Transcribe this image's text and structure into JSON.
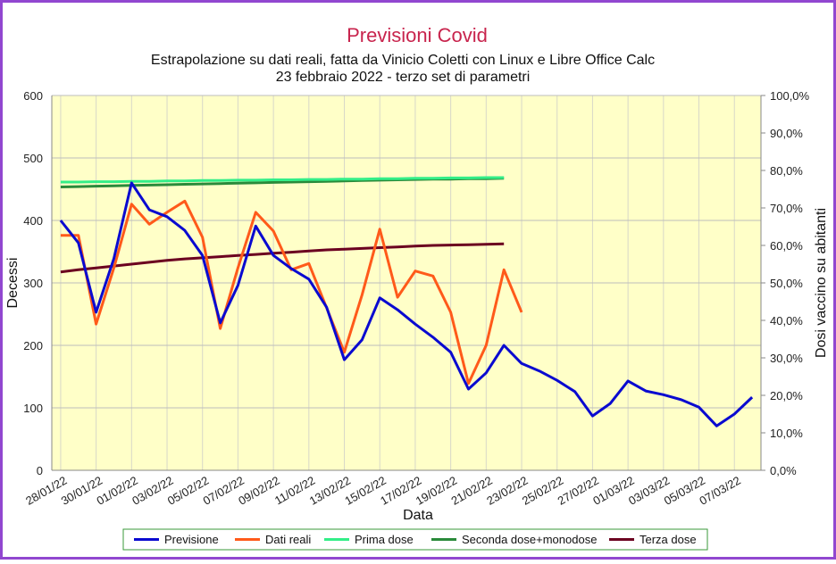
{
  "chart_data": {
    "type": "line",
    "title": "Previsioni Covid",
    "subtitle": [
      "Estrapolazione su dati reali, fatta da Vinicio Coletti con Linux e Libre Office Calc",
      "23 febbraio 2022 - terzo set di parametri"
    ],
    "xlabel": "Data",
    "ylabel": "Decessi",
    "y2label": "Dosi vaccino su abitanti",
    "categories": [
      "28/01/22",
      null,
      "30/01/22",
      null,
      "01/02/22",
      null,
      "03/02/22",
      null,
      "05/02/22",
      null,
      "07/02/22",
      null,
      "09/02/22",
      null,
      "11/02/22",
      null,
      "13/02/22",
      null,
      "15/02/22",
      null,
      "17/02/22",
      null,
      "19/02/22",
      null,
      "21/02/22",
      null,
      "23/02/22",
      null,
      "25/02/22",
      null,
      "27/02/22",
      null,
      "01/03/22",
      null,
      "03/03/22",
      null,
      "05/03/22",
      null,
      "07/03/22",
      null
    ],
    "ylim": [
      0,
      600
    ],
    "yticks": [
      0,
      100,
      200,
      300,
      400,
      500,
      600
    ],
    "y2lim": [
      0,
      100
    ],
    "y2ticks": [
      {
        "value": 0,
        "label": "0,0%"
      },
      {
        "value": 10,
        "label": "10,0%"
      },
      {
        "value": 20,
        "label": "20,0%"
      },
      {
        "value": 30,
        "label": "30,0%"
      },
      {
        "value": 40,
        "label": "40,0%"
      },
      {
        "value": 50,
        "label": "50,0%"
      },
      {
        "value": 60,
        "label": "60,0%"
      },
      {
        "value": 70,
        "label": "70,0%"
      },
      {
        "value": 80,
        "label": "80,0%"
      },
      {
        "value": 90,
        "label": "90,0%"
      },
      {
        "value": 100,
        "label": "100,0%"
      }
    ],
    "grid": true,
    "legend": "bottom",
    "series": [
      {
        "name": "Previsione",
        "color": "#0a0ad0",
        "values": [
          400,
          364,
          253,
          339,
          460,
          417,
          406,
          384,
          344,
          236,
          296,
          391,
          344,
          323,
          306,
          261,
          177,
          209,
          276,
          257,
          234,
          213,
          189,
          130,
          156,
          200,
          171,
          159,
          144,
          126,
          87,
          107,
          143,
          127,
          121,
          113,
          101,
          71,
          90,
          117
        ]
      },
      {
        "name": "Dati reali",
        "color": "#ff5a1a",
        "values": [
          376,
          376,
          234,
          324,
          426,
          394,
          413,
          431,
          373,
          227,
          324,
          413,
          383,
          321,
          331,
          260,
          189,
          281,
          386,
          277,
          319,
          311,
          253,
          139,
          200,
          321,
          253,
          null,
          null,
          null,
          null,
          null,
          null,
          null,
          null,
          null,
          null,
          null,
          null,
          null
        ]
      },
      {
        "name": "Prima dose",
        "color": "#33ee88",
        "axis": "y2",
        "values": [
          76.9,
          76.9,
          77.0,
          77.0,
          77.1,
          77.1,
          77.2,
          77.2,
          77.3,
          77.3,
          77.4,
          77.4,
          77.5,
          77.5,
          77.6,
          77.6,
          77.7,
          77.7,
          77.8,
          77.8,
          77.9,
          77.9,
          78.0,
          78.0,
          78.1,
          78.1,
          null,
          null,
          null,
          null,
          null,
          null,
          null,
          null,
          null,
          null,
          null,
          null,
          null,
          null
        ]
      },
      {
        "name": "Seconda dose+monodose",
        "color": "#2a8a3a",
        "axis": "y2",
        "values": [
          75.6,
          75.7,
          75.8,
          75.9,
          76.0,
          76.1,
          76.2,
          76.3,
          76.4,
          76.5,
          76.6,
          76.7,
          76.8,
          76.9,
          77.0,
          77.1,
          77.2,
          77.3,
          77.4,
          77.5,
          77.6,
          77.7,
          77.7,
          77.8,
          77.8,
          77.9,
          null,
          null,
          null,
          null,
          null,
          null,
          null,
          null,
          null,
          null,
          null,
          null,
          null,
          null
        ]
      },
      {
        "name": "Terza dose",
        "color": "#6b0020",
        "axis": "y2",
        "values": [
          52.9,
          53.5,
          54.0,
          54.5,
          55.0,
          55.5,
          56.0,
          56.4,
          56.7,
          57.0,
          57.3,
          57.6,
          57.9,
          58.2,
          58.5,
          58.8,
          59.0,
          59.2,
          59.4,
          59.6,
          59.8,
          60.0,
          60.1,
          60.2,
          60.3,
          60.4,
          null,
          null,
          null,
          null,
          null,
          null,
          null,
          null,
          null,
          null,
          null,
          null,
          null,
          null
        ]
      }
    ]
  }
}
